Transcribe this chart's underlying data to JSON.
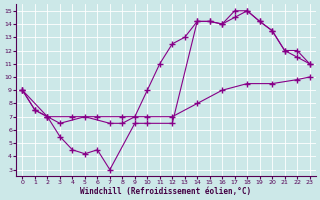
{
  "xlabel": "Windchill (Refroidissement éolien,°C)",
  "bg_color": "#cce8e8",
  "line_color": "#880088",
  "xlim": [
    -0.5,
    23.5
  ],
  "ylim": [
    2.5,
    15.5
  ],
  "xticks": [
    0,
    1,
    2,
    3,
    4,
    5,
    6,
    7,
    8,
    9,
    10,
    11,
    12,
    13,
    14,
    15,
    16,
    17,
    18,
    19,
    20,
    21,
    22,
    23
  ],
  "yticks": [
    3,
    4,
    5,
    6,
    7,
    8,
    9,
    10,
    11,
    12,
    13,
    14,
    15
  ],
  "line1_x": [
    0,
    1,
    2,
    3,
    4,
    5,
    6,
    7,
    9,
    10,
    12,
    14,
    15,
    16,
    17,
    18,
    19,
    20,
    21,
    22,
    23
  ],
  "line1_y": [
    9,
    7.5,
    7,
    5.5,
    4.5,
    4.2,
    4.5,
    3,
    6.5,
    6.5,
    6.5,
    14.2,
    14.2,
    14,
    15,
    15,
    14.2,
    13.5,
    12,
    12,
    11
  ],
  "line2_x": [
    0,
    1,
    2,
    3,
    5,
    7,
    8,
    9,
    10,
    11,
    12,
    13,
    14,
    15,
    16,
    17,
    18,
    19,
    20,
    21,
    22,
    23
  ],
  "line2_y": [
    9,
    7.5,
    7,
    6.5,
    7,
    6.5,
    6.5,
    7,
    9,
    11,
    12.5,
    13,
    14.2,
    14.2,
    14,
    14.5,
    15,
    14.2,
    13.5,
    12,
    11.5,
    11
  ],
  "line3_x": [
    0,
    2,
    4,
    6,
    8,
    10,
    12,
    14,
    16,
    18,
    20,
    22,
    23
  ],
  "line3_y": [
    9,
    7,
    7,
    7,
    7,
    7,
    7,
    8,
    9,
    9.5,
    9.5,
    9.8,
    10
  ]
}
